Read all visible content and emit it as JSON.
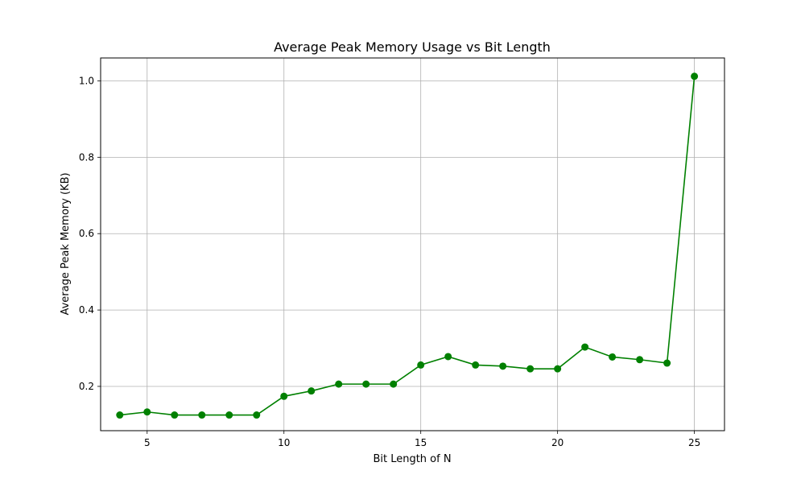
{
  "chart_data": {
    "type": "line",
    "title": "Average Peak Memory Usage vs Bit Length",
    "xlabel": "Bit Length of N",
    "ylabel": "Average Peak Memory (KB)",
    "xlim": [
      3.3,
      26.1
    ],
    "ylim": [
      0.084,
      1.06
    ],
    "xticks": [
      5,
      10,
      15,
      20,
      25
    ],
    "yticks": [
      0.2,
      0.4,
      0.6,
      0.8,
      1.0
    ],
    "ytick_labels": [
      "0.2",
      "0.4",
      "0.6",
      "0.8",
      "1.0"
    ],
    "grid": true,
    "series": [
      {
        "color": "#008000",
        "marker": "circle",
        "x": [
          4,
          5,
          6,
          7,
          8,
          9,
          10,
          11,
          12,
          13,
          14,
          15,
          16,
          17,
          18,
          19,
          20,
          21,
          22,
          23,
          24,
          25
        ],
        "y": [
          0.125,
          0.133,
          0.125,
          0.125,
          0.125,
          0.125,
          0.174,
          0.188,
          0.206,
          0.206,
          0.206,
          0.256,
          0.278,
          0.256,
          0.253,
          0.246,
          0.246,
          0.303,
          0.277,
          0.27,
          0.261,
          1.012
        ]
      }
    ]
  }
}
